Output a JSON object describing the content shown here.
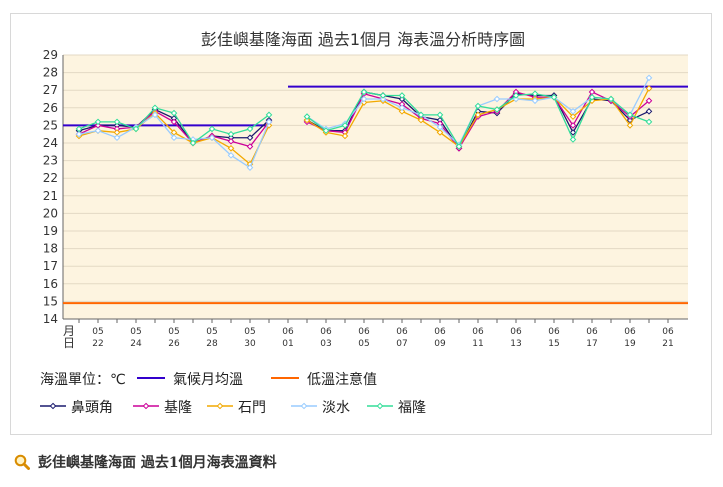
{
  "page": {
    "footer_link_text": "彭佳嶼基隆海面 過去1個月海表溫資料",
    "footer_icon": "magnifier-icon"
  },
  "chart_data": {
    "type": "line",
    "title": "彭佳嶼基隆海面 過去1個月 海表溫分析時序圖",
    "xlabel": "月日",
    "ylabel": "",
    "ylim": [
      14,
      29
    ],
    "yticks": [
      14,
      15,
      16,
      17,
      18,
      19,
      20,
      21,
      22,
      23,
      24,
      25,
      26,
      27,
      28,
      29
    ],
    "grid": true,
    "legend_placement": "bottom",
    "unit_label": "海溫單位：℃",
    "x": [
      "05-21",
      "05-22",
      "05-23",
      "05-24",
      "05-25",
      "05-26",
      "05-27",
      "05-28",
      "05-29",
      "05-30",
      "05-31",
      "06-01",
      "06-02",
      "06-03",
      "06-04",
      "06-05",
      "06-06",
      "06-07",
      "06-08",
      "06-09",
      "06-10",
      "06-11",
      "06-12",
      "06-13",
      "06-14",
      "06-15",
      "06-16",
      "06-17",
      "06-18",
      "06-19",
      "06-20"
    ],
    "xtick_labels": [
      {
        "date": "05-22",
        "month": "05",
        "day": "22"
      },
      {
        "date": "05-24",
        "month": "05",
        "day": "24"
      },
      {
        "date": "05-26",
        "month": "05",
        "day": "26"
      },
      {
        "date": "05-28",
        "month": "05",
        "day": "28"
      },
      {
        "date": "05-30",
        "month": "05",
        "day": "30"
      },
      {
        "date": "06-01",
        "month": "06",
        "day": "01"
      },
      {
        "date": "06-03",
        "month": "06",
        "day": "03"
      },
      {
        "date": "06-05",
        "month": "06",
        "day": "05"
      },
      {
        "date": "06-07",
        "month": "06",
        "day": "07"
      },
      {
        "date": "06-09",
        "month": "06",
        "day": "09"
      },
      {
        "date": "06-11",
        "month": "06",
        "day": "11"
      },
      {
        "date": "06-13",
        "month": "06",
        "day": "13"
      },
      {
        "date": "06-15",
        "month": "06",
        "day": "15"
      },
      {
        "date": "06-17",
        "month": "06",
        "day": "17"
      },
      {
        "date": "06-19",
        "month": "06",
        "day": "19"
      },
      {
        "date": "06-21",
        "month": "06",
        "day": "21"
      }
    ],
    "reference_lines": [
      {
        "name": "氣候月均溫",
        "color": "#3300cc",
        "segments": [
          {
            "x_start": "05-21",
            "x_end": "05-31",
            "y": 25.0
          },
          {
            "x_start": "06-01",
            "x_end": "06-21",
            "y": 27.2
          }
        ]
      },
      {
        "name": "低溫注意值",
        "color": "#ff6600",
        "segments": [
          {
            "x_start": "05-21",
            "x_end": "06-21",
            "y": 14.9
          }
        ]
      }
    ],
    "series": [
      {
        "name": "鼻頭角",
        "color": "#1a1a6e",
        "values": [
          24.7,
          25.0,
          25.0,
          24.9,
          25.9,
          25.4,
          24.0,
          24.4,
          24.3,
          24.3,
          25.3,
          null,
          25.3,
          24.7,
          24.7,
          26.9,
          26.7,
          26.5,
          25.5,
          25.3,
          23.7,
          25.8,
          25.7,
          26.8,
          26.7,
          26.7,
          24.6,
          26.5,
          26.4,
          25.3,
          25.8
        ]
      },
      {
        "name": "基隆",
        "color": "#cc0099",
        "values": [
          24.5,
          25.0,
          24.8,
          24.9,
          25.8,
          25.2,
          24.0,
          24.4,
          24.1,
          23.8,
          25.2,
          null,
          25.2,
          24.7,
          24.6,
          26.8,
          26.5,
          26.2,
          25.4,
          25.1,
          23.7,
          25.5,
          25.8,
          26.9,
          26.6,
          26.6,
          25.0,
          26.9,
          26.4,
          25.5,
          26.4
        ]
      },
      {
        "name": "石門",
        "color": "#f2a900",
        "values": [
          24.4,
          24.7,
          24.6,
          24.8,
          25.7,
          24.6,
          24.0,
          24.3,
          23.7,
          22.8,
          25.0,
          null,
          25.3,
          24.6,
          24.4,
          26.3,
          26.4,
          25.8,
          25.3,
          24.6,
          23.8,
          25.6,
          25.9,
          26.5,
          26.5,
          26.6,
          25.5,
          26.4,
          26.5,
          25.0,
          27.1
        ]
      },
      {
        "name": "淡水",
        "color": "#99ccff",
        "values": [
          24.5,
          24.7,
          24.3,
          24.9,
          25.6,
          24.3,
          24.2,
          24.3,
          23.3,
          22.6,
          25.2,
          null,
          25.5,
          24.8,
          25.1,
          26.5,
          26.5,
          26.0,
          25.6,
          24.9,
          23.9,
          26.1,
          26.5,
          26.5,
          26.4,
          26.6,
          25.8,
          26.6,
          26.5,
          25.6,
          27.7
        ]
      },
      {
        "name": "福隆",
        "color": "#33dd99",
        "values": [
          24.8,
          25.2,
          25.2,
          24.8,
          26.0,
          25.7,
          24.0,
          24.8,
          24.5,
          24.8,
          25.6,
          null,
          25.5,
          24.7,
          25.0,
          26.9,
          26.7,
          26.7,
          25.6,
          25.6,
          23.8,
          26.1,
          25.9,
          26.7,
          26.8,
          26.6,
          24.2,
          26.6,
          26.5,
          25.6,
          25.2
        ]
      }
    ]
  }
}
